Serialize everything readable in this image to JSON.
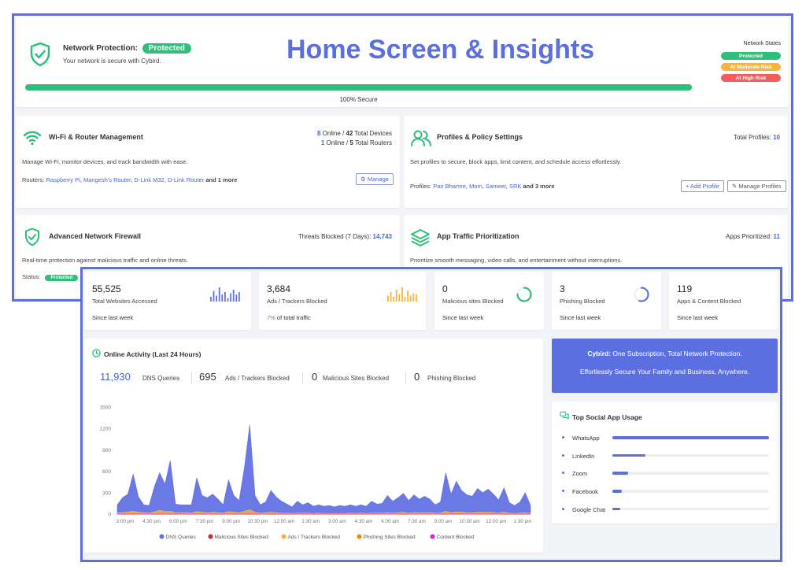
{
  "overlay_title": "Home Screen & Insights",
  "header": {
    "label": "Network Protection:",
    "status": "Protected",
    "subtitle": "Your network is secure with Cybird.",
    "progress_percent": 100,
    "progress_label": "100% Secure",
    "states_title": "Network States",
    "states": [
      {
        "label": "Protected",
        "color": "#2fbf7a"
      },
      {
        "label": "At Moderate Risk",
        "color": "#f5b342"
      },
      {
        "label": "At High Risk",
        "color": "#f25c5c"
      }
    ]
  },
  "wifi": {
    "title": "Wi-Fi & Router Management",
    "online_devices": "8",
    "online_devices_text": " Online / ",
    "total_devices": "42",
    "total_devices_text": " Total Devices",
    "online_routers": "1",
    "online_routers_text": " Online / ",
    "total_routers": "5",
    "total_routers_text": " Total Routers",
    "description": "Manage Wi-Fi, monitor devices, and track bandwidth with ease.",
    "routers_label": "Routers:",
    "routers": [
      "Raspberry Pi",
      "Mangesh's Router",
      "D-Link M32",
      "D-Link Router"
    ],
    "sep": ",",
    "routers_more": "and 1 more",
    "manage_label": "Manage"
  },
  "profiles": {
    "title": "Profiles & Policy Settings",
    "total_label": "Total Profiles:",
    "total_value": "10",
    "description": "Set profiles to secure, block apps, limit content, and schedule access effortlessly.",
    "profiles_label": "Profiles:",
    "profiles": [
      "Pari Bhamre",
      "Mom",
      "Sameer",
      "SRK"
    ],
    "profiles_more": "and 3 more",
    "add_label": "+ Add Profile",
    "manage_label": "Manage Profiles"
  },
  "firewall": {
    "title": "Advanced Network Firewall",
    "threats_label": "Threats Blocked (7 Days):",
    "threats_value": "14,743",
    "description": "Real-time protection against malicious traffic and online threats.",
    "status_label": "Status:",
    "status_value": "Protected"
  },
  "traffic": {
    "title": "App Traffic Prioritization",
    "apps_label": "Apps Prioritized:",
    "apps_value": "11",
    "description": "Prioritize smooth messaging, video calls, and entertainment without interruptions."
  },
  "stats": [
    {
      "value": "55,525",
      "label": "Total Websites Accessed",
      "foot": "Since last week"
    },
    {
      "value": "3,684",
      "label": "Ads / Trackers Blocked",
      "foot_pct": "7%",
      "foot": " of total traffic"
    },
    {
      "value": "0",
      "label": "Malicious sites Blocked",
      "foot": "Since last week",
      "ring": 0.75
    },
    {
      "value": "3",
      "label": "Phishing Blocked",
      "foot": "Since last week",
      "ring": 0.55
    },
    {
      "value": "119",
      "label": "Apps & Content Blocked",
      "foot": "Since last week"
    }
  ],
  "activity": {
    "title": "Online Activity (Last 24 Hours)",
    "metrics": [
      {
        "value": "11,930",
        "label": "DNS Queries"
      },
      {
        "value": "695",
        "label": "Ads / Trackers Blocked"
      },
      {
        "value": "0",
        "label": "Malicious Sites Blocked"
      },
      {
        "value": "0",
        "label": "Phishing Blocked"
      }
    ]
  },
  "colors": {
    "dns": "#6272e3",
    "malicious": "#d62828",
    "ads": "#f5b342",
    "phishing": "#f08c00",
    "content": "#e020c8",
    "accent": "#5b6fe0",
    "green": "#2fbf7a"
  },
  "chart_data": {
    "type": "area",
    "xlabel": "",
    "ylabel": "",
    "ylim": [
      0,
      1500
    ],
    "yticks": [
      0,
      300,
      600,
      900,
      1200,
      1500
    ],
    "xticks": [
      "3:00 pm",
      "4:30 pm",
      "6:00 pm",
      "7:30 pm",
      "9:00 pm",
      "10:30 pm",
      "12:00 am",
      "1:30 am",
      "3:00 am",
      "4:30 am",
      "6:00 am",
      "7:30 am",
      "9:00 am",
      "10:30 am",
      "12:00 pm",
      "1:30 pm"
    ],
    "series": [
      {
        "name": "DNS Queries",
        "values": [
          130,
          230,
          280,
          560,
          240,
          130,
          120,
          380,
          580,
          420,
          750,
          140,
          130,
          130,
          130,
          510,
          260,
          230,
          280,
          210,
          130,
          480,
          260,
          190,
          650,
          1250,
          260,
          130,
          170,
          330,
          240,
          180,
          140,
          100,
          180,
          130,
          160,
          110,
          130,
          110,
          120,
          100,
          120,
          110,
          130,
          110,
          130,
          110,
          180,
          140,
          150,
          260,
          180,
          230,
          290,
          190,
          270,
          210,
          250,
          210,
          130,
          170,
          580,
          280,
          460,
          330,
          270,
          250,
          360,
          300,
          350,
          280,
          200,
          370,
          160,
          120,
          170,
          300,
          120
        ]
      },
      {
        "name": "Malicious Sites Blocked",
        "values": [
          0,
          0,
          0,
          0,
          0,
          0,
          0,
          0,
          0,
          0,
          0,
          0,
          0,
          0,
          0,
          0,
          0,
          0,
          0,
          0,
          0,
          0,
          0,
          0,
          0,
          0,
          0,
          0,
          0,
          0,
          0,
          0,
          0,
          0,
          0,
          0,
          0,
          0,
          0,
          0,
          0,
          0,
          0,
          0,
          0,
          0,
          0,
          0,
          0,
          0,
          0,
          0,
          0,
          0,
          0,
          0,
          0,
          0,
          0,
          0,
          0,
          0,
          0,
          0,
          0,
          0,
          0,
          0,
          0,
          0,
          0,
          0,
          0,
          0,
          0,
          0,
          0,
          0,
          0
        ]
      },
      {
        "name": "Ads / Trackers Blocked",
        "values": [
          15,
          20,
          30,
          40,
          25,
          20,
          15,
          30,
          55,
          35,
          40,
          20,
          20,
          20,
          15,
          35,
          25,
          20,
          25,
          20,
          15,
          35,
          25,
          20,
          40,
          60,
          25,
          15,
          20,
          25,
          20,
          15,
          15,
          10,
          15,
          15,
          15,
          10,
          15,
          10,
          10,
          10,
          10,
          10,
          15,
          10,
          15,
          10,
          15,
          15,
          15,
          20,
          15,
          20,
          25,
          15,
          20,
          20,
          20,
          20,
          15,
          15,
          40,
          20,
          30,
          25,
          20,
          20,
          25,
          25,
          25,
          20,
          15,
          25,
          15,
          10,
          15,
          20,
          10
        ]
      },
      {
        "name": "Phishing Sites Blocked",
        "values": [
          0,
          0,
          0,
          0,
          0,
          0,
          0,
          0,
          0,
          0,
          0,
          0,
          0,
          0,
          0,
          0,
          0,
          0,
          0,
          0,
          0,
          0,
          0,
          0,
          0,
          0,
          0,
          0,
          0,
          0,
          0,
          0,
          0,
          0,
          0,
          0,
          0,
          0,
          0,
          0,
          0,
          0,
          0,
          0,
          0,
          0,
          0,
          0,
          0,
          0,
          0,
          0,
          0,
          0,
          0,
          0,
          0,
          0,
          0,
          0,
          0,
          0,
          0,
          0,
          0,
          0,
          0,
          0,
          0,
          0,
          0,
          0,
          0,
          0,
          0,
          0,
          0,
          0,
          0
        ]
      },
      {
        "name": "Content Blocked",
        "values": [
          0,
          0,
          0,
          0,
          0,
          0,
          0,
          0,
          0,
          0,
          0,
          0,
          0,
          0,
          0,
          0,
          0,
          0,
          0,
          0,
          0,
          0,
          0,
          0,
          0,
          0,
          0,
          0,
          0,
          0,
          0,
          0,
          0,
          0,
          0,
          0,
          0,
          0,
          0,
          0,
          0,
          0,
          0,
          0,
          0,
          0,
          0,
          0,
          0,
          0,
          0,
          0,
          0,
          0,
          0,
          0,
          0,
          0,
          0,
          0,
          0,
          0,
          0,
          0,
          0,
          0,
          0,
          0,
          0,
          0,
          0,
          0,
          0,
          0,
          0,
          0,
          0,
          0,
          0
        ]
      }
    ],
    "legend_position": "bottom"
  },
  "spark1": [
    4,
    9,
    5,
    12,
    6,
    8,
    3,
    7,
    10,
    6,
    8
  ],
  "spark2": [
    5,
    8,
    4,
    10,
    6,
    12,
    4,
    9,
    5,
    7,
    6
  ],
  "promo": {
    "brand": "Cybird:",
    "line1": " One Subscription, Total Network Protection.",
    "line2": "Effortlessly Secure Your Family and Business, Anywhere."
  },
  "social": {
    "title": "Top Social App Usage",
    "apps": [
      {
        "name": "WhatsApp",
        "usage": 1.0
      },
      {
        "name": "LinkedIn",
        "usage": 0.21
      },
      {
        "name": "Zoom",
        "usage": 0.1
      },
      {
        "name": "Facebook",
        "usage": 0.06
      },
      {
        "name": "Google Chat",
        "usage": 0.05
      }
    ]
  }
}
